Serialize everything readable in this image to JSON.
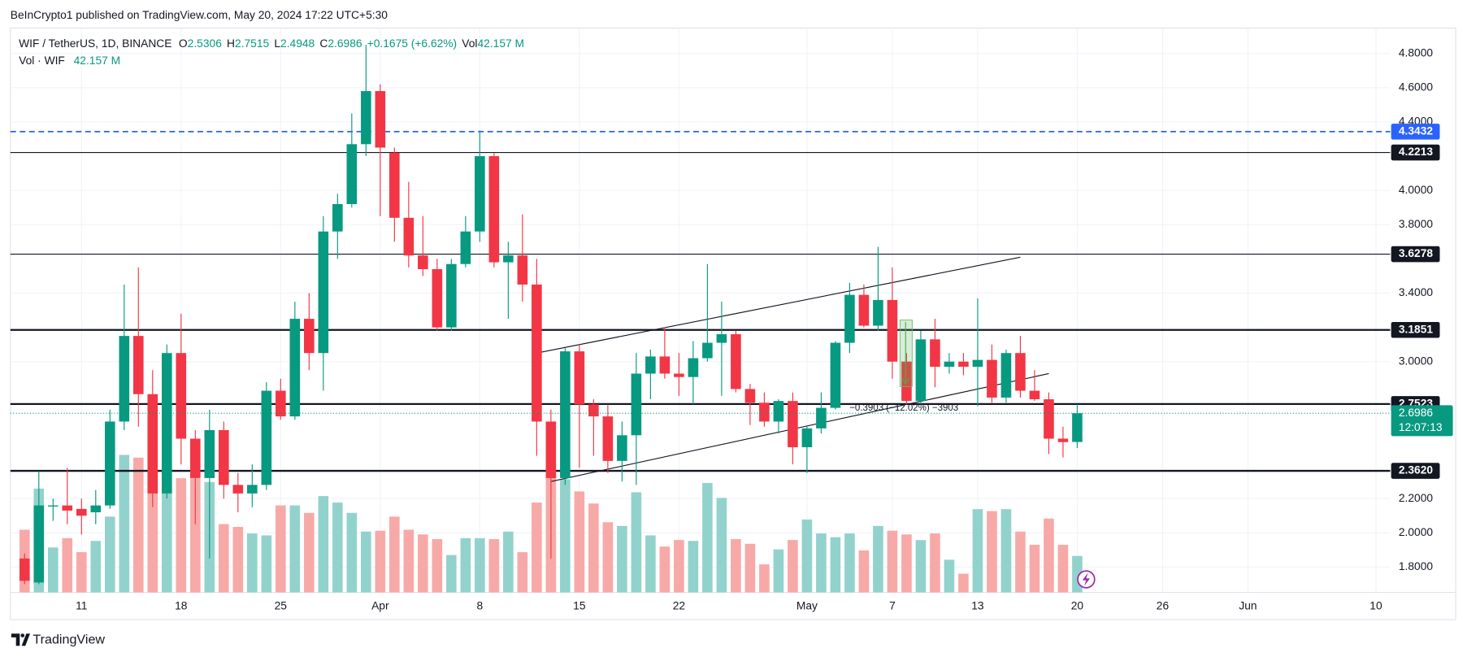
{
  "header": {
    "published": "BeInCrypto1 published on TradingView.com, May 20, 2024 17:22 UTC+5:30"
  },
  "footer": {
    "brand": "TradingView"
  },
  "chart_data": {
    "type": "candlestick",
    "symbol": "WIF / TetherUS, 1D, BINANCE",
    "ohlc_keys": [
      "O",
      "H",
      "L",
      "C"
    ],
    "change_label": "+0.1675 (+6.62%)",
    "vol_key": "Vol",
    "volume_label": "42.157 M",
    "volume_title": "Vol · WIF",
    "countdown": "12:07:13",
    "measure_label": "−0.3903 (−12.02%) −3903",
    "up_color": "#089981",
    "down_color": "#f23645",
    "volume_up_color": "#92d2cc",
    "volume_down_color": "#f7a9a7",
    "grid": true,
    "x": [
      "2024-03-07",
      "2024-03-08",
      "2024-03-09",
      "2024-03-10",
      "2024-03-11",
      "2024-03-12",
      "2024-03-13",
      "2024-03-14",
      "2024-03-15",
      "2024-03-16",
      "2024-03-17",
      "2024-03-18",
      "2024-03-19",
      "2024-03-20",
      "2024-03-21",
      "2024-03-22",
      "2024-03-23",
      "2024-03-24",
      "2024-03-25",
      "2024-03-26",
      "2024-03-27",
      "2024-03-28",
      "2024-03-29",
      "2024-03-30",
      "2024-03-31",
      "2024-04-01",
      "2024-04-02",
      "2024-04-03",
      "2024-04-04",
      "2024-04-05",
      "2024-04-06",
      "2024-04-07",
      "2024-04-08",
      "2024-04-09",
      "2024-04-10",
      "2024-04-11",
      "2024-04-12",
      "2024-04-13",
      "2024-04-14",
      "2024-04-15",
      "2024-04-16",
      "2024-04-17",
      "2024-04-18",
      "2024-04-19",
      "2024-04-20",
      "2024-04-21",
      "2024-04-22",
      "2024-04-23",
      "2024-04-24",
      "2024-04-25",
      "2024-04-26",
      "2024-04-27",
      "2024-04-28",
      "2024-04-29",
      "2024-04-30",
      "2024-05-01",
      "2024-05-02",
      "2024-05-03",
      "2024-05-04",
      "2024-05-05",
      "2024-05-06",
      "2024-05-07",
      "2024-05-08",
      "2024-05-09",
      "2024-05-10",
      "2024-05-11",
      "2024-05-12",
      "2024-05-13",
      "2024-05-14",
      "2024-05-15",
      "2024-05-16",
      "2024-05-17",
      "2024-05-18",
      "2024-05-19",
      "2024-05-20"
    ],
    "open": [
      1.85,
      1.71,
      2.16,
      2.16,
      2.14,
      2.12,
      2.16,
      2.65,
      3.15,
      2.81,
      2.23,
      3.05,
      2.55,
      2.32,
      2.6,
      2.28,
      2.23,
      2.28,
      2.83,
      2.68,
      3.25,
      3.05,
      3.76,
      3.92,
      4.27,
      4.58,
      4.22,
      3.84,
      3.62,
      3.54,
      3.2,
      3.57,
      3.76,
      4.2,
      3.58,
      3.62,
      3.45,
      2.65,
      2.32,
      3.06,
      2.75,
      2.68,
      2.42,
      2.57,
      2.93,
      3.03,
      2.93,
      2.91,
      3.02,
      3.11,
      3.16,
      2.84,
      2.76,
      2.65,
      2.77,
      2.5,
      2.61,
      2.73,
      3.11,
      3.39,
      3.21,
      3.36,
      3.0,
      2.77,
      3.13,
      2.97,
      3.0,
      2.97,
      3.01,
      2.79,
      3.05,
      2.83,
      2.78,
      2.55,
      2.5306
    ],
    "high": [
      1.88,
      2.36,
      2.2,
      2.38,
      2.2,
      2.25,
      2.72,
      3.45,
      3.55,
      2.95,
      3.1,
      3.28,
      2.6,
      2.72,
      2.65,
      2.35,
      2.4,
      2.88,
      2.9,
      3.35,
      3.4,
      3.85,
      3.98,
      4.45,
      4.85,
      4.62,
      4.25,
      4.05,
      3.85,
      3.6,
      3.6,
      3.85,
      4.35,
      4.22,
      3.7,
      3.86,
      3.6,
      2.72,
      3.08,
      3.1,
      2.78,
      2.75,
      2.65,
      3.05,
      3.07,
      3.2,
      3.05,
      3.12,
      3.57,
      3.35,
      3.18,
      2.87,
      2.82,
      2.78,
      2.82,
      2.62,
      2.82,
      3.12,
      3.46,
      3.45,
      3.67,
      3.55,
      3.05,
      3.18,
      3.25,
      3.05,
      3.05,
      3.37,
      3.1,
      3.07,
      3.15,
      2.95,
      2.82,
      2.62,
      2.7515
    ],
    "low": [
      1.7,
      1.7,
      2.07,
      2.05,
      1.99,
      2.05,
      2.14,
      2.6,
      2.62,
      2.15,
      2.2,
      2.4,
      2.05,
      1.85,
      2.2,
      2.12,
      2.15,
      2.25,
      2.66,
      2.66,
      2.95,
      2.83,
      3.6,
      3.9,
      4.2,
      3.85,
      3.7,
      3.55,
      3.5,
      3.18,
      3.18,
      3.55,
      3.7,
      3.55,
      3.25,
      3.35,
      2.45,
      1.85,
      2.28,
      2.38,
      2.45,
      2.35,
      2.3,
      2.28,
      2.78,
      2.9,
      2.8,
      2.75,
      3.0,
      2.8,
      2.82,
      2.63,
      2.62,
      2.58,
      2.4,
      2.35,
      2.58,
      2.72,
      3.05,
      3.2,
      3.18,
      2.9,
      2.75,
      2.75,
      2.85,
      2.93,
      2.92,
      2.74,
      2.76,
      2.76,
      2.79,
      2.77,
      2.46,
      2.44,
      2.4948
    ],
    "close": [
      1.72,
      2.16,
      2.16,
      2.13,
      2.1,
      2.16,
      2.65,
      3.15,
      2.81,
      2.23,
      3.05,
      2.55,
      2.32,
      2.6,
      2.28,
      2.23,
      2.28,
      2.83,
      2.68,
      3.25,
      3.05,
      3.76,
      3.92,
      4.27,
      4.58,
      4.25,
      3.84,
      3.62,
      3.54,
      3.2,
      3.57,
      3.76,
      4.2,
      3.58,
      3.62,
      3.45,
      2.65,
      2.32,
      3.06,
      2.75,
      2.68,
      2.42,
      2.57,
      2.93,
      3.03,
      2.93,
      2.91,
      3.02,
      3.11,
      3.16,
      2.84,
      2.76,
      2.65,
      2.77,
      2.5,
      2.61,
      2.73,
      3.11,
      3.39,
      3.21,
      3.36,
      3.0,
      2.77,
      3.13,
      2.97,
      3.0,
      2.97,
      3.01,
      2.79,
      3.05,
      2.83,
      2.78,
      2.55,
      2.53,
      2.6986
    ],
    "volume": [
      72.4,
      120.0,
      51.9,
      62.7,
      46.5,
      59.5,
      87.6,
      158.9,
      155.7,
      139.4,
      133.0,
      131.9,
      131.9,
      127.6,
      78.9,
      75.7,
      68.1,
      65.9,
      100.5,
      100.5,
      91.9,
      111.3,
      103.8,
      91.9,
      70.3,
      71.3,
      87.6,
      72.4,
      67.0,
      61.6,
      43.2,
      62.7,
      62.7,
      61.6,
      70.3,
      46.5,
      103.8,
      135.1,
      130.8,
      116.7,
      102.7,
      81.1,
      76.8,
      115.7,
      65.9,
      53.0,
      60.5,
      59.5,
      126.5,
      109.2,
      61.6,
      56.2,
      32.4,
      49.7,
      60.5,
      84.3,
      68.1,
      63.8,
      68.1,
      48.6,
      76.8,
      71.3,
      67.0,
      60.5,
      68.1,
      37.8,
      21.6,
      96.2,
      94.0,
      96.2,
      70.3,
      55.1,
      85.4,
      55.1,
      42.157
    ],
    "xlim": [
      "2024-03-06",
      "2024-06-11"
    ],
    "xticks": [
      {
        "value": "2024-03-11",
        "label": "11"
      },
      {
        "value": "2024-03-18",
        "label": "18"
      },
      {
        "value": "2024-03-25",
        "label": "25"
      },
      {
        "value": "2024-04-01",
        "label": "Apr"
      },
      {
        "value": "2024-04-08",
        "label": "8"
      },
      {
        "value": "2024-04-15",
        "label": "15"
      },
      {
        "value": "2024-04-22",
        "label": "22"
      },
      {
        "value": "2024-05-01",
        "label": "May"
      },
      {
        "value": "2024-05-07",
        "label": "7"
      },
      {
        "value": "2024-05-13",
        "label": "13"
      },
      {
        "value": "2024-05-20",
        "label": "20"
      },
      {
        "value": "2024-05-26",
        "label": "26"
      },
      {
        "value": "2024-06-01",
        "label": "Jun"
      },
      {
        "value": "2024-06-10",
        "label": "10"
      }
    ],
    "ylim": [
      1.652,
      4.948
    ],
    "yticks": [
      {
        "value": 1.8,
        "label": "1.8000"
      },
      {
        "value": 2.0,
        "label": "2.0000"
      },
      {
        "value": 2.2,
        "label": "2.2000"
      },
      {
        "value": 3.0,
        "label": "3.0000"
      },
      {
        "value": 3.4,
        "label": "3.4000"
      },
      {
        "value": 3.8,
        "label": "3.8000"
      },
      {
        "value": 4.0,
        "label": "4.0000"
      },
      {
        "value": 4.4,
        "label": "4.4000"
      },
      {
        "value": 4.6,
        "label": "4.6000"
      },
      {
        "value": 4.8,
        "label": "4.8000"
      }
    ],
    "y2lim": [
      0,
      652
    ],
    "levels": [
      {
        "price": 4.3432,
        "color": "#2962ff",
        "style": "dashed",
        "width": 1.5
      },
      {
        "price": 4.2213,
        "color": "#131722",
        "style": "solid",
        "width": 1
      },
      {
        "price": 3.6278,
        "color": "#131722",
        "style": "solid",
        "width": 1
      },
      {
        "price": 3.1851,
        "color": "#131722",
        "style": "solid",
        "width": 2
      },
      {
        "price": 2.7523,
        "color": "#131722",
        "style": "solid",
        "width": 2
      },
      {
        "price": 2.362,
        "label": "2.3620",
        "color": "#131722",
        "style": "solid",
        "width": 2
      }
    ],
    "trendlines": [
      {
        "x": [
          "2024-04-12",
          "2024-05-16"
        ],
        "y": [
          3.05,
          3.61
        ]
      },
      {
        "x": [
          "2024-04-13",
          "2024-05-18"
        ],
        "y": [
          2.3,
          2.93
        ]
      }
    ]
  }
}
